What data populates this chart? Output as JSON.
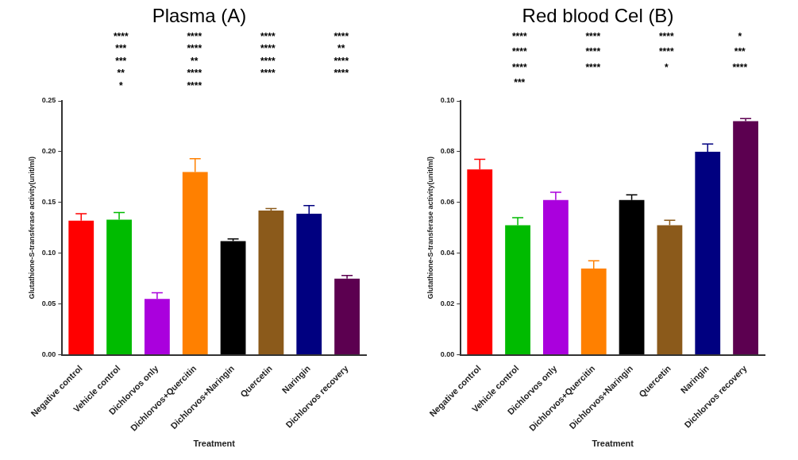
{
  "chart_data": [
    {
      "type": "bar",
      "title": "Plasma (A)",
      "xlabel": "Treatment",
      "ylabel": "Glutathione-S-transferase activity(unit/ml)",
      "categories": [
        "Negative control",
        "Vehicle control",
        "Dichlorvos only",
        "Dichlorvos+Quercitin",
        "Dichlorvos+Naringin",
        "Quercetin",
        "Naringin",
        "Dichlorvos recovery"
      ],
      "values": [
        0.132,
        0.133,
        0.055,
        0.18,
        0.112,
        0.142,
        0.139,
        0.075
      ],
      "errors": [
        0.007,
        0.007,
        0.006,
        0.013,
        0.002,
        0.002,
        0.008,
        0.003
      ],
      "colors": [
        "#ff0000",
        "#00bb00",
        "#aa00dd",
        "#ff8000",
        "#000000",
        "#8b5a1b",
        "#000080",
        "#5c0050"
      ],
      "ylim": [
        0,
        0.25
      ],
      "yticks": [
        {
          "value": 0,
          "label": "0.00"
        },
        0.05,
        {
          "value": 0.1,
          "label": "0.10"
        },
        0.15,
        {
          "value": 0.2,
          "label": "0.20"
        },
        0.25
      ],
      "annotations": [
        "****",
        "****",
        "****",
        "****",
        "***",
        "****",
        "****",
        "**",
        "***",
        "**",
        "****",
        "****",
        "**",
        "****",
        "****",
        "****",
        "*",
        "****"
      ]
    },
    {
      "type": "bar",
      "title": "Red blood Cel (B)",
      "xlabel": "Treatment",
      "ylabel": "Glutathione-S-transferase activity(unit/ml)",
      "categories": [
        "Negative control",
        "Vehicle control",
        "Dichlorvos only",
        "Dichlorvos+Quercitin",
        "Dichlorvos+Naringin",
        "Quercetin",
        "Naringin",
        "Dichlorvos recovery"
      ],
      "values": [
        0.073,
        0.051,
        0.061,
        0.034,
        0.061,
        0.051,
        0.08,
        0.092
      ],
      "errors": [
        0.004,
        0.003,
        0.003,
        0.003,
        0.002,
        0.002,
        0.003,
        0.001
      ],
      "colors": [
        "#ff0000",
        "#00bb00",
        "#aa00dd",
        "#ff8000",
        "#000000",
        "#8b5a1b",
        "#000080",
        "#5c0050"
      ],
      "ylim": [
        0,
        0.1
      ],
      "yticks": [
        {
          "value": 0,
          "label": "0.00"
        },
        0.02,
        0.04,
        0.06,
        0.08,
        {
          "value": 0.1,
          "label": "0.10"
        }
      ],
      "annotations": [
        "****",
        "****",
        "****",
        "*",
        "****",
        "****",
        "****",
        "***",
        "****",
        "****",
        "*",
        "****",
        "***"
      ]
    }
  ]
}
